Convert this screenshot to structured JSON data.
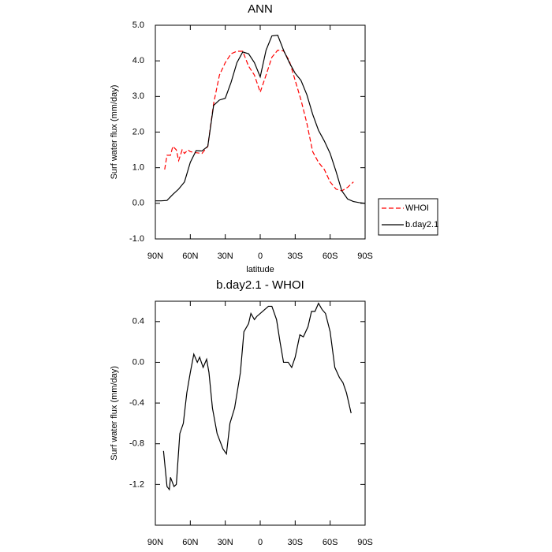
{
  "chart_data": [
    {
      "type": "line",
      "title": "ANN",
      "x_label": "latitude",
      "y_label": "Surf water flux (mm/day)",
      "xlim": [
        90,
        -90
      ],
      "xticks": [
        {
          "value": 90,
          "label": "90N"
        },
        {
          "value": 60,
          "label": "60N"
        },
        {
          "value": 30,
          "label": "30N"
        },
        0,
        {
          "value": -30,
          "label": "30S"
        },
        {
          "value": -60,
          "label": "60S"
        },
        {
          "value": -90,
          "label": "90S"
        }
      ],
      "ylim": [
        -1,
        5
      ],
      "yticks": [
        {
          "value": -1,
          "label": "-1.0"
        },
        {
          "value": 0,
          "label": "0.0"
        },
        {
          "value": 1,
          "label": "1.0"
        },
        {
          "value": 2,
          "label": "2.0"
        },
        {
          "value": 3,
          "label": "3.0"
        },
        {
          "value": 4,
          "label": "4.0"
        },
        {
          "value": 5,
          "label": "5.0"
        }
      ],
      "legend": "right",
      "series": [
        {
          "name": "WHOI",
          "color": "#ff0000",
          "dash": true,
          "x": [
            82,
            80,
            77,
            75,
            72,
            70,
            67,
            65,
            62,
            60,
            55,
            50,
            45,
            40,
            35,
            30,
            25,
            20,
            15,
            10,
            5,
            0,
            -5,
            -10,
            -15,
            -20,
            -25,
            -30,
            -35,
            -40,
            -45,
            -50,
            -55,
            -60,
            -65,
            -70,
            -75,
            -80
          ],
          "values": [
            0.95,
            1.35,
            1.35,
            1.6,
            1.5,
            1.2,
            1.5,
            1.4,
            1.5,
            1.45,
            1.42,
            1.4,
            1.6,
            2.8,
            3.6,
            3.95,
            4.2,
            4.27,
            4.27,
            3.85,
            3.6,
            3.12,
            3.6,
            4.1,
            4.3,
            4.28,
            4.0,
            3.45,
            2.9,
            2.25,
            1.45,
            1.15,
            0.95,
            0.6,
            0.4,
            0.35,
            0.45,
            0.6
          ]
        },
        {
          "name": "b.day2.1",
          "color": "#000000",
          "dash": false,
          "x": [
            90,
            85,
            80,
            75,
            70,
            65,
            60,
            55,
            50,
            45,
            40,
            35,
            30,
            25,
            20,
            15,
            10,
            5,
            0,
            -5,
            -10,
            -15,
            -20,
            -25,
            -30,
            -35,
            -40,
            -45,
            -50,
            -55,
            -60,
            -65,
            -70,
            -75,
            -80,
            -85,
            -90
          ],
          "values": [
            0.07,
            0.07,
            0.08,
            0.25,
            0.4,
            0.6,
            1.15,
            1.48,
            1.47,
            1.6,
            2.75,
            2.9,
            2.95,
            3.4,
            3.95,
            4.25,
            4.2,
            3.95,
            3.55,
            4.3,
            4.7,
            4.72,
            4.3,
            3.95,
            3.65,
            3.45,
            3.05,
            2.5,
            2.05,
            1.75,
            1.4,
            0.9,
            0.35,
            0.12,
            0.05,
            0.02,
            0.0
          ]
        }
      ]
    },
    {
      "type": "line",
      "title": "b.day2.1 - WHOI",
      "x_label": "latitude",
      "y_label": "Surf water flux (mm/day)",
      "xlim": [
        90,
        -90
      ],
      "xticks": [
        {
          "value": 90,
          "label": "90N"
        },
        {
          "value": 60,
          "label": "60N"
        },
        {
          "value": 30,
          "label": "30N"
        },
        0,
        {
          "value": -30,
          "label": "30S"
        },
        {
          "value": -60,
          "label": "60S"
        },
        {
          "value": -90,
          "label": "90S"
        }
      ],
      "ylim": [
        -1.6,
        0.6
      ],
      "yticks": [
        -1.2,
        -0.8,
        -0.4,
        {
          "value": 0,
          "label": "0.0"
        },
        0.4
      ],
      "color": "#000000",
      "x": [
        83,
        80,
        78,
        77,
        74,
        72,
        69,
        66,
        63,
        60,
        57,
        54,
        52,
        49,
        46,
        44,
        41,
        37,
        32,
        29,
        26,
        22,
        17,
        14,
        10,
        8,
        5,
        3,
        -2,
        -7,
        -10,
        -14,
        -17,
        -20,
        -24,
        -27,
        -30,
        -34,
        -37,
        -41,
        -44,
        -47,
        -50,
        -53,
        -56,
        -60,
        -64,
        -68,
        -71,
        -74,
        -78
      ],
      "values": [
        -0.87,
        -1.22,
        -1.25,
        -1.13,
        -1.22,
        -1.2,
        -0.7,
        -0.6,
        -0.3,
        -0.1,
        0.08,
        0.0,
        0.05,
        -0.05,
        0.03,
        -0.1,
        -0.45,
        -0.7,
        -0.85,
        -0.9,
        -0.6,
        -0.45,
        -0.1,
        0.3,
        0.38,
        0.48,
        0.42,
        0.45,
        0.5,
        0.55,
        0.55,
        0.42,
        0.2,
        0.0,
        0.0,
        -0.05,
        0.05,
        0.27,
        0.25,
        0.35,
        0.5,
        0.5,
        0.58,
        0.52,
        0.48,
        0.3,
        -0.05,
        -0.15,
        -0.2,
        -0.3,
        -0.5
      ]
    }
  ]
}
